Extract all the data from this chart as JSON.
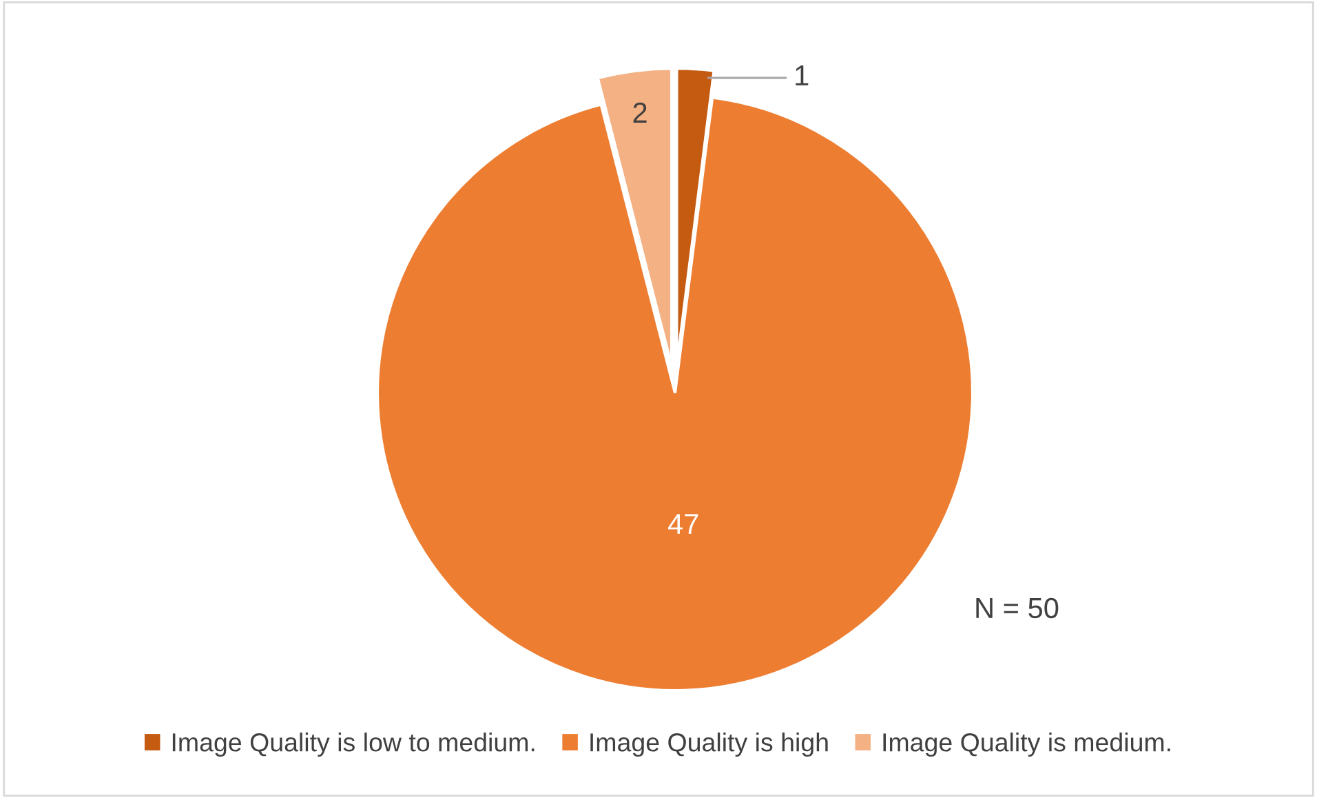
{
  "chart_data": {
    "type": "pie",
    "categories": [
      "Image Quality is low to medium.",
      "Image Quality is high",
      "Image Quality is medium."
    ],
    "values": [
      1,
      47,
      2
    ],
    "colors": [
      "#c55a11",
      "#ed7d31",
      "#f4b183"
    ],
    "data_labels": true,
    "legend": "bottom",
    "annotations": [
      {
        "text": "N = 50"
      }
    ]
  }
}
